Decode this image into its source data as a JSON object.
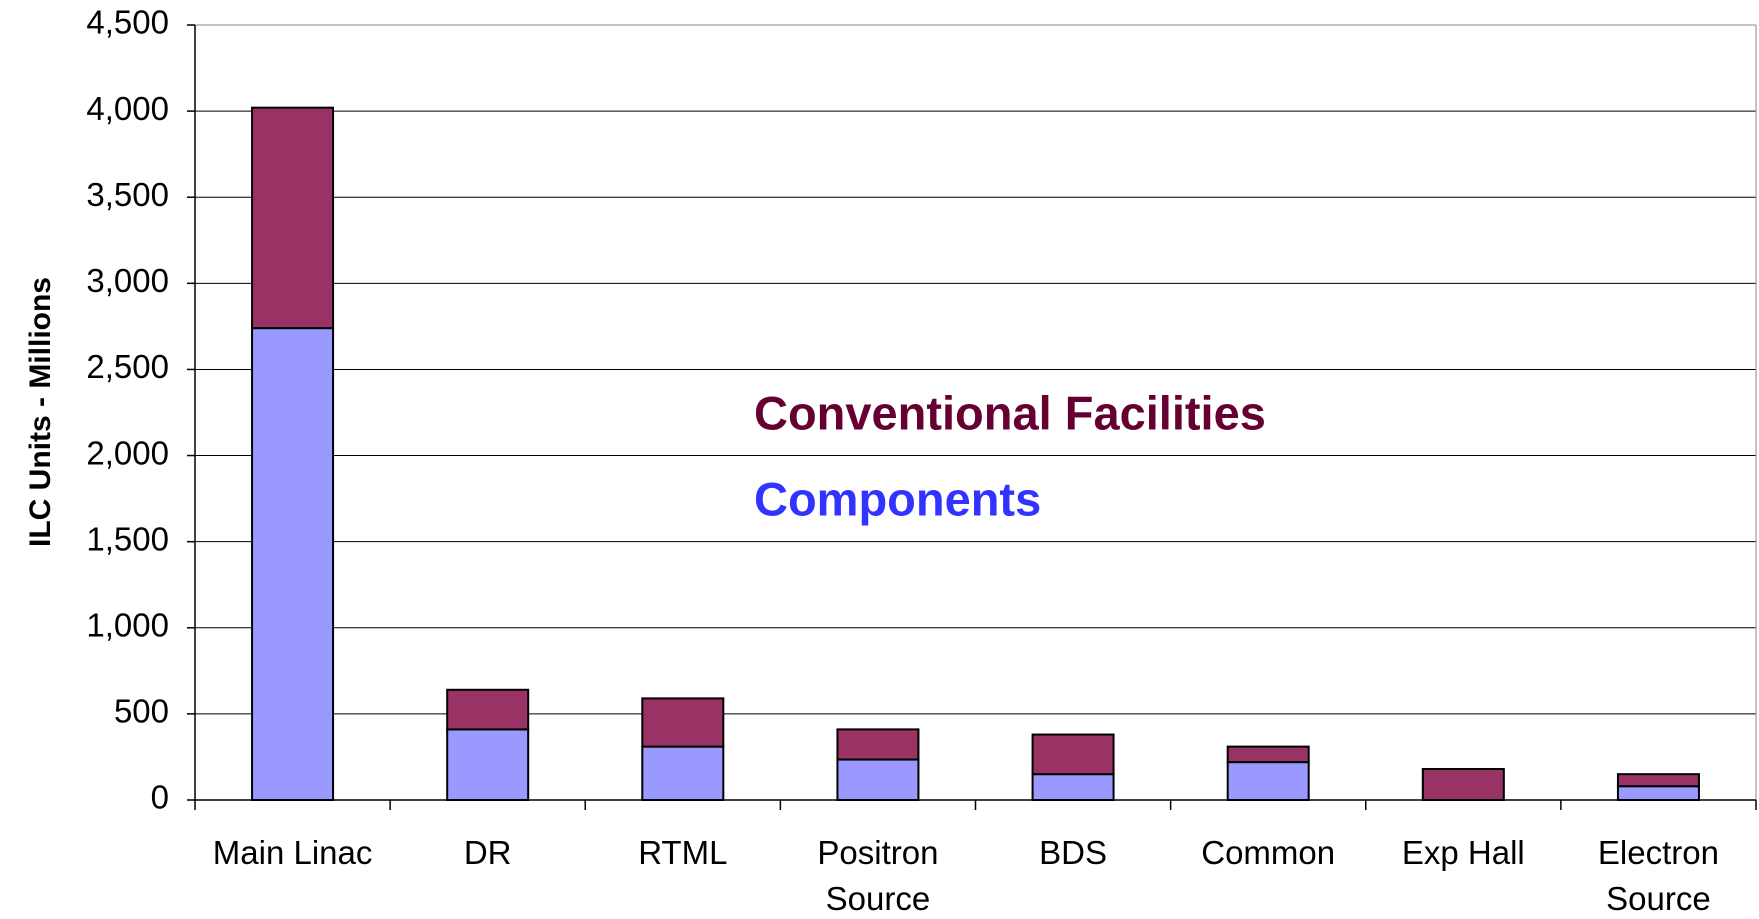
{
  "chart_data": {
    "type": "stacked_bar",
    "y_label": "ILC Units - Millions",
    "categories": [
      "Main Linac",
      "DR",
      "RTML",
      "Positron Source",
      "BDS",
      "Common",
      "Exp Hall",
      "Electron Source"
    ],
    "series": [
      {
        "name": "Components",
        "color": "#9999ff",
        "label_color": "#3333ff",
        "values": [
          2740,
          410,
          310,
          235,
          150,
          220,
          0,
          80
        ]
      },
      {
        "name": "Conventional Facilities",
        "color": "#993366",
        "label_color": "#660033",
        "values": [
          1280,
          230,
          280,
          175,
          230,
          90,
          180,
          70
        ]
      }
    ],
    "ylim": [
      0,
      4500
    ],
    "yticks": [
      0,
      500,
      {
        "value": 1000,
        "label": "1,000"
      },
      {
        "value": 1500,
        "label": "1,500"
      },
      {
        "value": 2000,
        "label": "2,000"
      },
      {
        "value": 2500,
        "label": "2,500"
      },
      {
        "value": 3000,
        "label": "3,000"
      },
      {
        "value": 3500,
        "label": "3,500"
      },
      {
        "value": 4000,
        "label": "4,000"
      },
      {
        "value": 4500,
        "label": "4,500"
      }
    ],
    "grid": true
  }
}
